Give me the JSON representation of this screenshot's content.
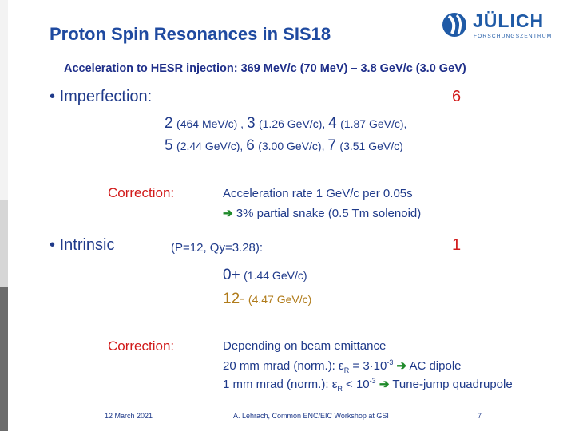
{
  "slide": {
    "title": "Proton Spin Resonances in SIS18",
    "subtitle": "Acceleration to HESR injection: 369 MeV/c (70 MeV) – 3.8 GeV/c (3.0 GeV)",
    "imperfection": {
      "label": "Imperfection:",
      "count": "6",
      "line1": [
        {
          "n": "2",
          "v": "(464 MeV/c) , "
        },
        {
          "n": "3",
          "v": "(1.26 GeV/c), "
        },
        {
          "n": "4",
          "v": "(1.87 GeV/c),"
        }
      ],
      "line2": [
        {
          "n": "5",
          "v": "(2.44 GeV/c), "
        },
        {
          "n": "6",
          "v": "(3.00 GeV/c), "
        },
        {
          "n": "7",
          "v": "(3.51 GeV/c)"
        }
      ],
      "correction_label": "Correction:",
      "correction_line1": "Acceleration rate 1 GeV/c per 0.05s",
      "correction_line2": "3% partial snake (0.5 Tm solenoid)"
    },
    "intrinsic": {
      "label": "Intrinsic",
      "params": "(P=12, Qy=3.28):",
      "count": "1",
      "res1_n": "0+",
      "res1_v": "(1.44 GeV/c)",
      "res2_n": "12-",
      "res2_v": "(4.47 GeV/c)",
      "correction_label": "Correction:",
      "line1": "Depending on beam emittance",
      "line2_pre": "20 mm mrad (norm.): ",
      "line2_eps": "ε",
      "line2_sub": "R",
      "line2_mid": " = 3·10",
      "line2_sup": "-3",
      "line2_post": " AC dipole",
      "line3_pre": "1 mm mrad (norm.): ",
      "line3_eps": "ε",
      "line3_sub": "R",
      "line3_mid": " < 10",
      "line3_sup": "-3",
      "line3_post": " Tune-jump quadrupole"
    }
  },
  "footer": {
    "date": "12 March 2021",
    "author": "A. Lehrach, Common ENC/EIC Workshop at GSI",
    "page": "7"
  },
  "logo": {
    "name": "JÜLICH",
    "tagline": "FORSCHUNGSZENTRUM"
  },
  "colors": {
    "title": "#1f4aa0",
    "text": "#1f3a8a",
    "accent_red": "#d11a1a",
    "arrow_green": "#1f8a2a"
  }
}
